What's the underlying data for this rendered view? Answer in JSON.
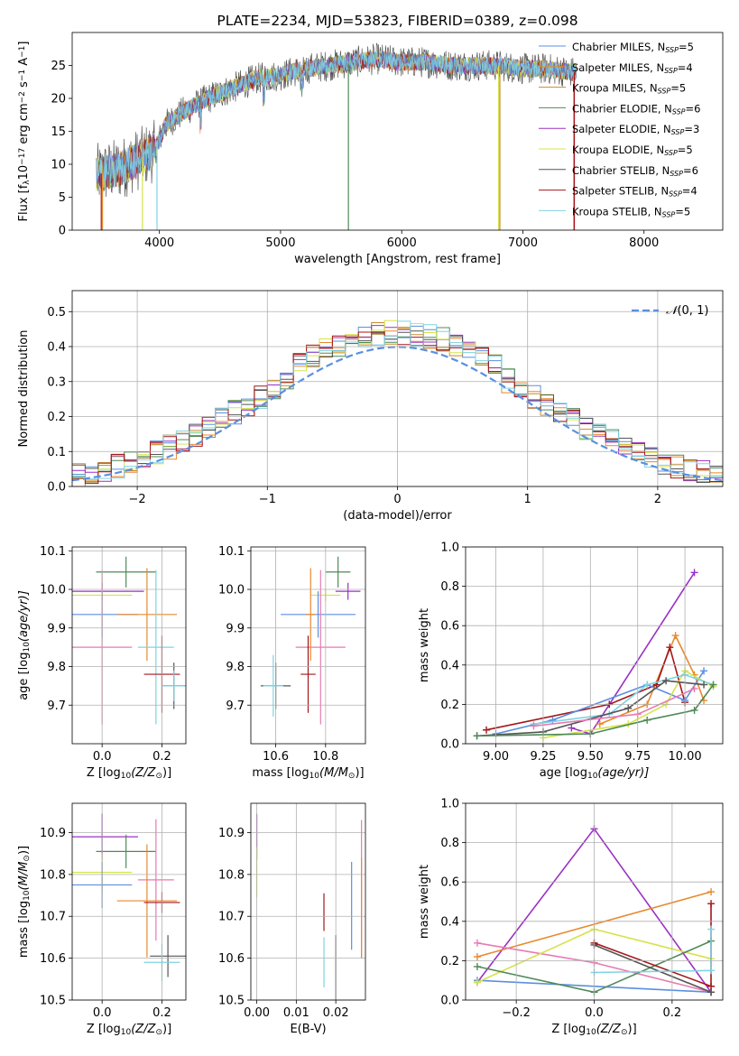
{
  "colors": {
    "chabrier_miles": "#5b8fe0",
    "salpeter_miles": "#e8892e",
    "kroupa_miles": "#c58b2a",
    "chabrier_elodie": "#4f8a57",
    "salpeter_elodie": "#9b30c6",
    "kroupa_elodie": "#d6e34a",
    "chabrier_stelib": "#555555",
    "salpeter_stelib": "#a4161a",
    "kroupa_stelib": "#7fd3e3",
    "pink": "#e97ab0",
    "normal_curve": "#5b8fe0",
    "spectrum_main": "#7f7f7f"
  },
  "chart_data": [
    {
      "id": "spectrum",
      "type": "line",
      "title": "PLATE=2234, MJD=53823, FIBERID=0389, z=0.098",
      "xlabel": "wavelength [Angstrom, rest frame]",
      "ylabel_parts": [
        "Flux [f",
        "λ",
        "10",
        "−17",
        " erg cm",
        "−2",
        " s",
        "−1",
        " A",
        "−1",
        "]"
      ],
      "xlim": [
        3280,
        8650
      ],
      "ylim": [
        0,
        30
      ],
      "xticks": [
        4000,
        5000,
        6000,
        7000,
        8000
      ],
      "yticks": [
        0,
        5,
        10,
        15,
        20,
        25
      ],
      "legend_position": "top-right",
      "legend": [
        {
          "name": "Chabrier MILES, N",
          "sub": "SSP",
          "suffix": "=5",
          "color_key": "chabrier_miles"
        },
        {
          "name": "Salpeter MILES, N",
          "sub": "SSP",
          "suffix": "=4",
          "color_key": "salpeter_miles"
        },
        {
          "name": "Kroupa MILES, N",
          "sub": "SSP",
          "suffix": "=5",
          "color_key": "kroupa_miles"
        },
        {
          "name": "Chabrier ELODIE, N",
          "sub": "SSP",
          "suffix": "=6",
          "color_key": "chabrier_elodie"
        },
        {
          "name": "Salpeter ELODIE, N",
          "sub": "SSP",
          "suffix": "=3",
          "color_key": "salpeter_elodie"
        },
        {
          "name": "Kroupa ELODIE, N",
          "sub": "SSP",
          "suffix": "=5",
          "color_key": "kroupa_elodie"
        },
        {
          "name": "Chabrier STELIB, N",
          "sub": "SSP",
          "suffix": "=6",
          "color_key": "chabrier_stelib"
        },
        {
          "name": "Salpeter STELIB, N",
          "sub": "SSP",
          "suffix": "=4",
          "color_key": "salpeter_stelib"
        },
        {
          "name": "Kroupa STELIB, N",
          "sub": "SSP",
          "suffix": "=5",
          "color_key": "kroupa_stelib"
        }
      ],
      "continuum": {
        "x": [
          3500,
          3700,
          3900,
          3960,
          4050,
          4200,
          4400,
          4600,
          4800,
          5000,
          5200,
          5400,
          5600,
          5800,
          6000,
          6200,
          6400,
          6600,
          6800,
          7000,
          7200,
          7400
        ],
        "y": [
          8.5,
          9.5,
          11.5,
          12,
          16,
          18,
          20,
          21.5,
          23,
          23.5,
          24.5,
          25,
          25.5,
          26,
          25.5,
          25.5,
          25,
          25,
          25,
          24.5,
          24.5,
          24
        ]
      },
      "drop_lines": [
        {
          "x": 3520,
          "color_key": "salpeter_stelib"
        },
        {
          "x": 3530,
          "color_key": "salpeter_miles"
        },
        {
          "x": 3860,
          "color_key": "kroupa_elodie"
        },
        {
          "x": 3980,
          "color_key": "kroupa_stelib"
        },
        {
          "x": 5560,
          "color_key": "chabrier_elodie"
        },
        {
          "x": 6800,
          "color_key": "kroupa_elodie"
        },
        {
          "x": 6810,
          "color_key": "kroupa_miles"
        },
        {
          "x": 7420,
          "color_key": "salpeter_miles"
        },
        {
          "x": 7425,
          "color_key": "salpeter_stelib"
        }
      ]
    },
    {
      "id": "residual-histogram",
      "type": "bar",
      "xlabel": "(data-model)/error",
      "ylabel": "Normed distribution",
      "xlim": [
        -2.5,
        2.5
      ],
      "ylim": [
        0,
        0.56
      ],
      "xticks": [
        -2,
        -1,
        0,
        1,
        2
      ],
      "yticks": [
        0.0,
        0.1,
        0.2,
        0.3,
        0.4,
        0.5
      ],
      "bin_width": 0.1,
      "legend_position": "top-right",
      "legend": [
        {
          "name_parts": [
            "𝒩",
            "(0, 1)"
          ],
          "color_key": "normal_curve"
        }
      ],
      "series_color_keys": [
        "chabrier_miles",
        "salpeter_miles",
        "kroupa_miles",
        "chabrier_elodie",
        "salpeter_elodie",
        "kroupa_elodie",
        "chabrier_stelib",
        "salpeter_stelib",
        "kroupa_stelib"
      ]
    },
    {
      "id": "age-vs-z",
      "type": "scatter",
      "xlabel_parts": [
        "Z [log",
        "10",
        "(Z/Z",
        "⊙",
        ")]"
      ],
      "ylabel_parts": [
        "age  [log",
        "10",
        "(age/yr)]"
      ],
      "xlim": [
        -0.1,
        0.28
      ],
      "ylim": [
        9.6,
        10.11
      ],
      "xticks": [
        0.0,
        0.2
      ],
      "yticks": [
        9.7,
        9.8,
        9.9,
        10.0,
        10.1
      ],
      "points": [
        {
          "x": 0.08,
          "y": 10.045,
          "xerr": 0.1,
          "yerr": 0.04,
          "color_key": "chabrier_elodie"
        },
        {
          "x": 0.0,
          "y": 9.995,
          "xerr": 0.14,
          "yerr": 0.022,
          "color_key": "salpeter_elodie"
        },
        {
          "x": 0.0,
          "y": 9.985,
          "xerr": 0.1,
          "yerr": 0.015,
          "color_key": "kroupa_elodie"
        },
        {
          "x": 0.0,
          "y": 9.935,
          "xerr": 0.12,
          "yerr": 0.06,
          "color_key": "chabrier_miles"
        },
        {
          "x": 0.15,
          "y": 9.935,
          "xerr": 0.1,
          "yerr": 0.12,
          "color_key": "salpeter_miles"
        },
        {
          "x": 0.0,
          "y": 9.85,
          "xerr": 0.1,
          "yerr": 0.2,
          "color_key": "pink"
        },
        {
          "x": 0.18,
          "y": 9.85,
          "xerr": 0.06,
          "yerr": 0.2,
          "color_key": "kroupa_stelib"
        },
        {
          "x": 0.2,
          "y": 9.78,
          "xerr": 0.06,
          "yerr": 0.1,
          "color_key": "salpeter_stelib"
        },
        {
          "x": 0.24,
          "y": 9.75,
          "xerr": 0.04,
          "yerr": 0.06,
          "color_key": "chabrier_stelib"
        },
        {
          "x": 0.24,
          "y": 9.75,
          "xerr": 0.04,
          "yerr": 0.04,
          "color_key": "kroupa_stelib"
        }
      ]
    },
    {
      "id": "age-vs-mass",
      "type": "scatter",
      "xlabel_parts": [
        "mass [log",
        "10",
        "(M/M",
        "⊙",
        ")]"
      ],
      "xlim": [
        10.5,
        10.96
      ],
      "ylim": [
        9.6,
        10.11
      ],
      "xticks": [
        10.6,
        10.8
      ],
      "yticks": [
        9.7,
        9.8,
        9.9,
        10.0,
        10.1
      ],
      "points": [
        {
          "x": 10.85,
          "y": 10.045,
          "xerr": 0.05,
          "yerr": 0.04,
          "color_key": "chabrier_elodie"
        },
        {
          "x": 10.89,
          "y": 9.995,
          "xerr": 0.05,
          "yerr": 0.022,
          "color_key": "salpeter_elodie"
        },
        {
          "x": 10.8,
          "y": 9.985,
          "xerr": 0.06,
          "yerr": 0.015,
          "color_key": "kroupa_elodie"
        },
        {
          "x": 10.77,
          "y": 9.935,
          "xerr": 0.15,
          "yerr": 0.06,
          "color_key": "chabrier_miles"
        },
        {
          "x": 10.74,
          "y": 9.935,
          "xerr": 0.02,
          "yerr": 0.12,
          "color_key": "salpeter_miles"
        },
        {
          "x": 10.78,
          "y": 9.85,
          "xerr": 0.1,
          "yerr": 0.2,
          "color_key": "pink"
        },
        {
          "x": 10.73,
          "y": 9.78,
          "xerr": 0.03,
          "yerr": 0.1,
          "color_key": "salpeter_stelib"
        },
        {
          "x": 10.6,
          "y": 9.75,
          "xerr": 0.06,
          "yerr": 0.06,
          "color_key": "chabrier_stelib"
        },
        {
          "x": 10.59,
          "y": 9.75,
          "xerr": 0.04,
          "yerr": 0.08,
          "color_key": "kroupa_stelib"
        }
      ]
    },
    {
      "id": "mass-weight-vs-age",
      "type": "line",
      "xlabel_parts": [
        "age  [log",
        "10",
        "(age/yr)]"
      ],
      "ylabel": "mass weight",
      "xlim": [
        8.84,
        10.2
      ],
      "ylim": [
        0,
        1.0
      ],
      "xticks": [
        9.0,
        9.25,
        9.5,
        9.75,
        10.0
      ],
      "yticks": [
        0.0,
        0.2,
        0.4,
        0.6,
        0.8,
        1.0
      ],
      "series": [
        {
          "color_key": "salpeter_elodie",
          "x": [
            9.4,
            9.5,
            10.05
          ],
          "y": [
            0.08,
            0.05,
            0.87
          ]
        },
        {
          "color_key": "salpeter_miles",
          "x": [
            9.55,
            9.8,
            9.95,
            10.05,
            10.1
          ],
          "y": [
            0.1,
            0.2,
            0.55,
            0.35,
            0.22
          ]
        },
        {
          "color_key": "salpeter_stelib",
          "x": [
            8.95,
            9.6,
            9.85,
            9.92,
            10.0
          ],
          "y": [
            0.07,
            0.2,
            0.3,
            0.49,
            0.21
          ]
        },
        {
          "color_key": "chabrier_miles",
          "x": [
            9.0,
            9.3,
            9.8,
            10.0,
            10.1
          ],
          "y": [
            0.05,
            0.12,
            0.3,
            0.22,
            0.37
          ]
        },
        {
          "color_key": "kroupa_elodie",
          "x": [
            9.25,
            9.7,
            9.9,
            10.0,
            10.15
          ],
          "y": [
            0.03,
            0.1,
            0.2,
            0.37,
            0.29
          ]
        },
        {
          "color_key": "kroupa_stelib",
          "x": [
            9.2,
            9.6,
            9.8,
            10.0,
            10.15
          ],
          "y": [
            0.1,
            0.15,
            0.3,
            0.35,
            0.3
          ]
        },
        {
          "color_key": "chabrier_stelib",
          "x": [
            8.9,
            9.25,
            9.7,
            9.9,
            10.1
          ],
          "y": [
            0.04,
            0.06,
            0.18,
            0.32,
            0.3
          ]
        },
        {
          "color_key": "chabrier_elodie",
          "x": [
            8.9,
            9.5,
            9.8,
            10.05,
            10.15
          ],
          "y": [
            0.04,
            0.05,
            0.12,
            0.17,
            0.3
          ]
        },
        {
          "color_key": "pink",
          "x": [
            9.2,
            9.75,
            10.05
          ],
          "y": [
            0.09,
            0.15,
            0.28
          ]
        }
      ]
    },
    {
      "id": "mass-vs-z",
      "type": "scatter",
      "xlabel_parts": [
        "Z [log",
        "10",
        "(Z/Z",
        "⊙",
        ")]"
      ],
      "ylabel_parts": [
        "mass [log",
        "10",
        "(M/M",
        "⊙",
        ")]"
      ],
      "xlim": [
        -0.1,
        0.28
      ],
      "ylim": [
        10.5,
        10.97
      ],
      "xticks": [
        0.0,
        0.2
      ],
      "yticks": [
        10.5,
        10.6,
        10.7,
        10.8,
        10.9
      ],
      "points": [
        {
          "x": 0.0,
          "y": 10.89,
          "xerr": 0.12,
          "yerr": 0.055,
          "color_key": "salpeter_elodie"
        },
        {
          "x": 0.08,
          "y": 10.855,
          "xerr": 0.1,
          "yerr": 0.04,
          "color_key": "chabrier_elodie"
        },
        {
          "x": 0.0,
          "y": 10.805,
          "xerr": 0.1,
          "yerr": 0.045,
          "color_key": "kroupa_elodie"
        },
        {
          "x": 0.18,
          "y": 10.787,
          "xerr": 0.06,
          "yerr": 0.145,
          "color_key": "pink"
        },
        {
          "x": 0.0,
          "y": 10.775,
          "xerr": 0.1,
          "yerr": 0.055,
          "color_key": "chabrier_miles"
        },
        {
          "x": 0.15,
          "y": 10.737,
          "xerr": 0.1,
          "yerr": 0.135,
          "color_key": "salpeter_miles"
        },
        {
          "x": 0.2,
          "y": 10.733,
          "xerr": 0.06,
          "yerr": 0.025,
          "color_key": "salpeter_stelib"
        },
        {
          "x": 0.22,
          "y": 10.605,
          "xerr": 0.06,
          "yerr": 0.05,
          "color_key": "chabrier_stelib"
        },
        {
          "x": 0.2,
          "y": 10.59,
          "xerr": 0.06,
          "yerr": 0.045,
          "color_key": "kroupa_stelib"
        }
      ]
    },
    {
      "id": "mass-vs-ebv",
      "type": "scatter",
      "xlabel": "E(B-V)",
      "xlim": [
        -0.0015,
        0.0275
      ],
      "ylim": [
        10.5,
        10.97
      ],
      "xticks": [
        0.0,
        0.01,
        0.02
      ],
      "yticks": [
        10.5,
        10.6,
        10.7,
        10.8,
        10.9
      ],
      "points": [
        {
          "x": 0.0,
          "y": 10.89,
          "yerr": 0.055,
          "color_key": "salpeter_elodie"
        },
        {
          "x": 0.0,
          "y": 10.805,
          "yerr": 0.06,
          "color_key": "kroupa_elodie"
        },
        {
          "x": 0.017,
          "y": 10.71,
          "yerr": 0.045,
          "color_key": "salpeter_stelib"
        },
        {
          "x": 0.017,
          "y": 10.59,
          "yerr": 0.06,
          "color_key": "kroupa_stelib"
        },
        {
          "x": 0.02,
          "y": 10.575,
          "yerr": 0.08,
          "color_key": "chabrier_stelib"
        },
        {
          "x": 0.024,
          "y": 10.725,
          "yerr": 0.105,
          "color_key": "chabrier_miles"
        },
        {
          "x": 0.0265,
          "y": 10.765,
          "yerr": 0.165,
          "color_key": "pink"
        },
        {
          "x": 0.0265,
          "y": 10.72,
          "yerr": 0.12,
          "color_key": "salpeter_miles"
        }
      ]
    },
    {
      "id": "mass-weight-vs-z",
      "type": "line",
      "xlabel_parts": [
        "Z [log",
        "10",
        "(Z/Z",
        "⊙",
        ")]"
      ],
      "ylabel": "mass weight",
      "xlim": [
        -0.33,
        0.33
      ],
      "ylim": [
        0,
        1.0
      ],
      "xticks": [
        -0.2,
        0.0,
        0.2
      ],
      "yticks": [
        0.0,
        0.2,
        0.4,
        0.6,
        0.8,
        1.0
      ],
      "series": [
        {
          "color_key": "salpeter_elodie",
          "x": [
            -0.3,
            0.0,
            0.3
          ],
          "y": [
            0.09,
            0.87,
            0.04
          ]
        },
        {
          "color_key": "salpeter_miles",
          "x": [
            -0.3,
            0.3
          ],
          "y": [
            0.22,
            0.55
          ]
        },
        {
          "color_key": "pink",
          "x": [
            -0.3,
            0.0,
            0.3
          ],
          "y": [
            0.29,
            0.19,
            0.04
          ]
        },
        {
          "color_key": "chabrier_miles",
          "x": [
            -0.3,
            0.3
          ],
          "y": [
            0.1,
            0.04
          ]
        },
        {
          "color_key": "kroupa_elodie",
          "x": [
            -0.3,
            0.0,
            0.3
          ],
          "y": [
            0.09,
            0.36,
            0.21
          ]
        },
        {
          "color_key": "chabrier_elodie",
          "x": [
            -0.3,
            0.0,
            0.3
          ],
          "y": [
            0.17,
            0.04,
            0.3
          ]
        },
        {
          "color_key": "chabrier_stelib",
          "x": [
            0.0,
            0.3
          ],
          "y": [
            0.28,
            0.04
          ]
        },
        {
          "color_key": "salpeter_stelib",
          "x": [
            0.0,
            0.3,
            0.3
          ],
          "y": [
            0.29,
            0.07,
            0.49
          ]
        },
        {
          "color_key": "kroupa_stelib",
          "x": [
            0.0,
            0.3,
            0.3
          ],
          "y": [
            0.14,
            0.15,
            0.36
          ]
        }
      ]
    }
  ]
}
